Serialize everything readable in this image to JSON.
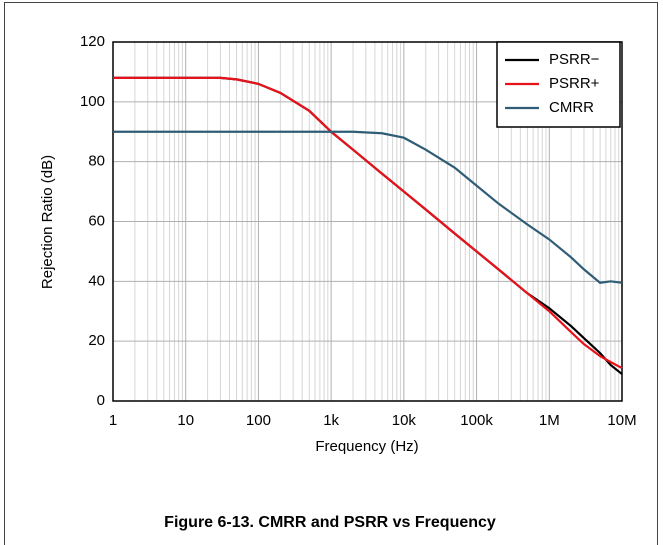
{
  "chart_data": {
    "type": "line",
    "title": "Figure 6-13. CMRR and PSRR vs Frequency",
    "x_label": "Frequency (Hz)",
    "y_label": "Rejection Ratio (dB)",
    "log_x": true,
    "grid": true,
    "legend": "top-right",
    "x": [
      1,
      10,
      30,
      50,
      100,
      200,
      500,
      1000,
      2000,
      5000,
      10000,
      20000,
      50000,
      100000,
      200000,
      500000,
      1000000,
      2000000,
      3000000,
      5000000,
      7000000,
      10000000
    ],
    "series": [
      {
        "name": "PSRR−",
        "color": "#000000",
        "values": [
          108,
          108,
          108,
          107.5,
          106,
          103,
          97,
          90,
          84,
          76,
          70,
          64,
          56,
          50,
          44,
          36,
          31,
          25,
          21,
          16,
          12,
          9
        ]
      },
      {
        "name": "PSRR+",
        "color": "#e8121b",
        "values": [
          108,
          108,
          108,
          107.5,
          106,
          103,
          97,
          90,
          84,
          76,
          70,
          64,
          56,
          50,
          44,
          36,
          30,
          23,
          19,
          15,
          13,
          11
        ]
      },
      {
        "name": "CMRR",
        "color": "#2f5d75",
        "values": [
          90,
          90,
          90,
          90,
          90,
          90,
          90,
          90,
          90,
          89.5,
          88,
          84,
          78,
          72,
          66,
          59,
          54,
          48,
          44,
          39.5,
          40,
          39.5
        ]
      }
    ],
    "xlim": [
      1,
      10000000
    ],
    "xticks": [
      1,
      10,
      100,
      {
        "value": 1000,
        "label": "1k"
      },
      {
        "value": 10000,
        "label": "10k"
      },
      {
        "value": 100000,
        "label": "100k"
      },
      {
        "value": 1000000,
        "label": "1M"
      },
      {
        "value": 10000000,
        "label": "10M"
      }
    ],
    "ylim": [
      0,
      120
    ],
    "yticks": [
      0,
      20,
      40,
      60,
      80,
      100,
      120
    ]
  }
}
